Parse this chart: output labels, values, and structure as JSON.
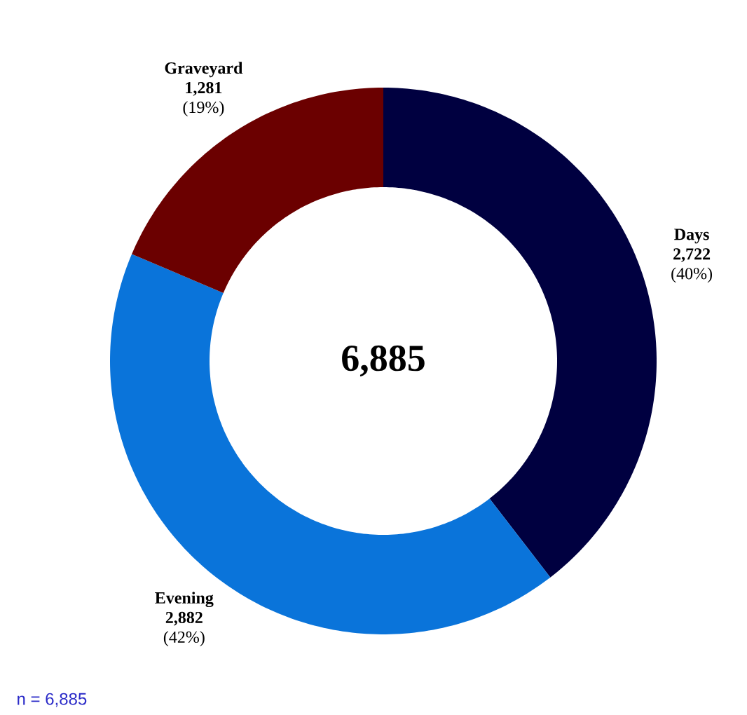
{
  "chart_data": {
    "type": "donut",
    "categories": [
      "Days",
      "Evening",
      "Graveyard"
    ],
    "values": [
      2722,
      2882,
      1281
    ],
    "colors": [
      "#000040",
      "#0a74da",
      "#6b0000"
    ],
    "value_labels": [
      "**2,722** (40%)",
      "**2,882** (42%)",
      "**1,281** (19%)"
    ],
    "annotations": [
      "6,885",
      "n = 6,885"
    ]
  }
}
